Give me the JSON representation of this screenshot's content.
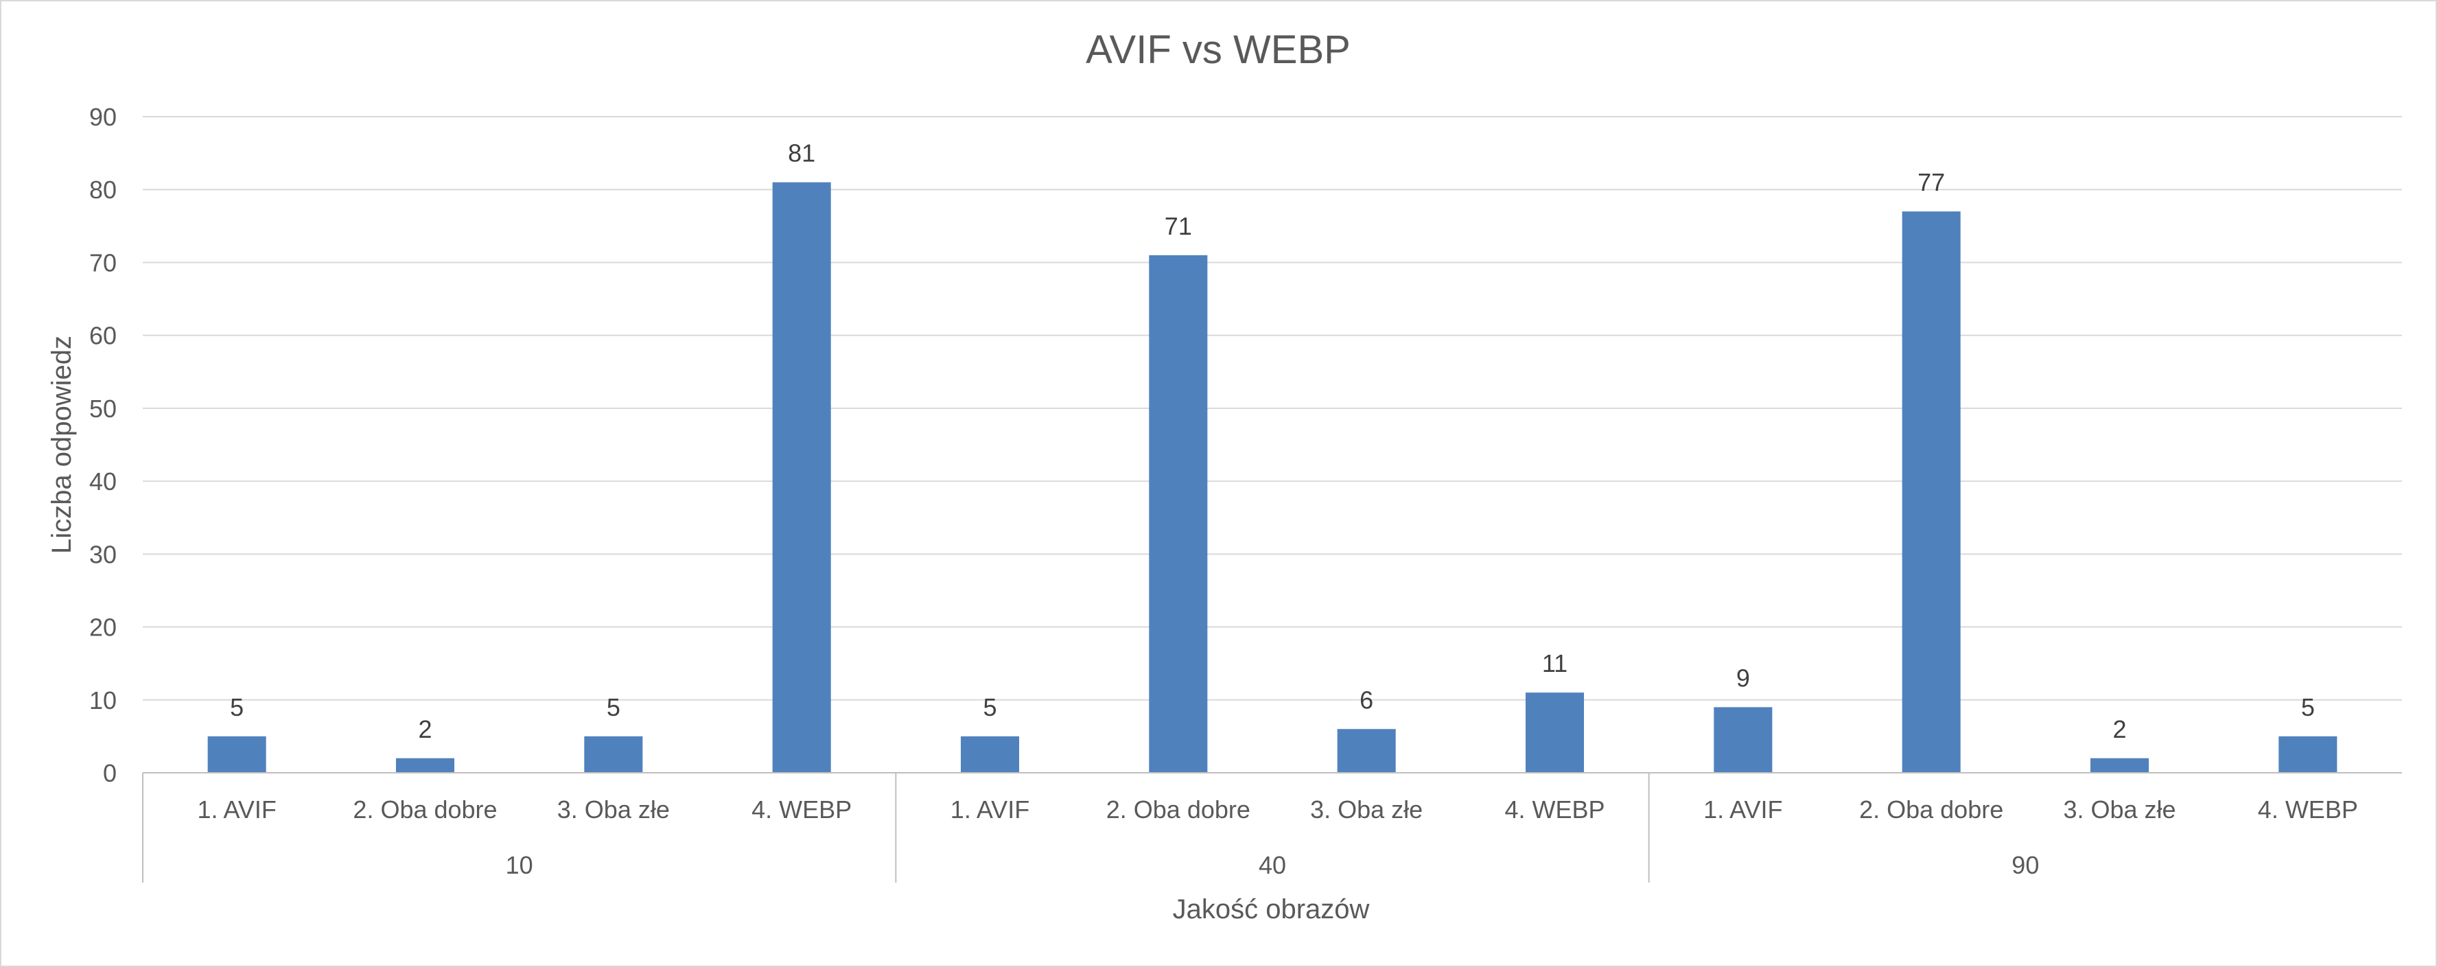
{
  "chart_data": {
    "type": "bar",
    "title": "AVIF vs WEBP",
    "xlabel": "Jakość obrazów",
    "ylabel": "Liczba odpowiedz",
    "ylim": [
      0,
      90
    ],
    "yticks": [
      0,
      10,
      20,
      30,
      40,
      50,
      60,
      70,
      80,
      90
    ],
    "grid": true,
    "legend": "none",
    "groups": [
      {
        "label": "10",
        "categories": [
          "1. AVIF",
          "2. Oba dobre",
          "3. Oba złe",
          "4. WEBP"
        ],
        "values": [
          5,
          2,
          5,
          81
        ]
      },
      {
        "label": "40",
        "categories": [
          "1. AVIF",
          "2. Oba dobre",
          "3. Oba złe",
          "4. WEBP"
        ],
        "values": [
          5,
          71,
          6,
          11
        ]
      },
      {
        "label": "90",
        "categories": [
          "1. AVIF",
          "2. Oba dobre",
          "3. Oba złe",
          "4. WEBP"
        ],
        "values": [
          9,
          77,
          2,
          5
        ]
      }
    ],
    "colors": {
      "bar": "#4f81bd",
      "grid": "#d9d9d9",
      "axis": "#bfbfbf",
      "text": "#595959",
      "label": "#404040",
      "frame": "#d9d9d9"
    }
  }
}
